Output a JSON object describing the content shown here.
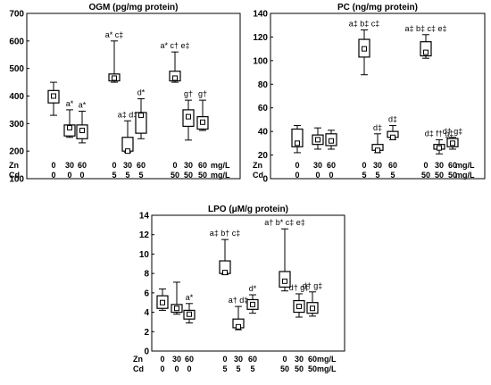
{
  "chart_data": [
    {
      "type": "box",
      "title": "OGM (pg/mg protein)",
      "ylim": [
        100,
        700
      ],
      "yticks": [
        100,
        200,
        300,
        400,
        500,
        600,
        700
      ],
      "conditions": {
        "rows": [
          {
            "name": "Zn",
            "unit": "mg/L",
            "values": [
              "0",
              "30",
              "60",
              "0",
              "30",
              "60",
              "0",
              "30",
              "60"
            ]
          },
          {
            "name": "Cd",
            "unit": "mg/L",
            "values": [
              "0",
              "0",
              "0",
              "5",
              "5",
              "5",
              "50",
              "50",
              "50"
            ]
          }
        ]
      },
      "boxes": [
        {
          "lo": 330,
          "q1": 375,
          "med": 400,
          "q3": 420,
          "hi": 450,
          "mean": 400,
          "note": ""
        },
        {
          "lo": 250,
          "q1": 255,
          "med": 290,
          "q3": 295,
          "hi": 350,
          "mean": 285,
          "note": "a*"
        },
        {
          "lo": 230,
          "q1": 245,
          "med": 275,
          "q3": 295,
          "hi": 345,
          "mean": 275,
          "note": "a*"
        },
        {
          "lo": 450,
          "q1": 455,
          "med": 460,
          "q3": 480,
          "hi": 600,
          "mean": 465,
          "note": "a* c‡"
        },
        {
          "lo": 195,
          "q1": 200,
          "med": 230,
          "q3": 250,
          "hi": 310,
          "mean": 200,
          "note": "a‡ d‡"
        },
        {
          "lo": 245,
          "q1": 265,
          "med": 300,
          "q3": 340,
          "hi": 390,
          "mean": 330,
          "note": "d*"
        },
        {
          "lo": 450,
          "q1": 455,
          "med": 460,
          "q3": 490,
          "hi": 560,
          "mean": 465,
          "note": "a* c† e‡"
        },
        {
          "lo": 240,
          "q1": 290,
          "med": 320,
          "q3": 350,
          "hi": 385,
          "mean": 325,
          "note": "g†"
        },
        {
          "lo": 275,
          "q1": 280,
          "med": 300,
          "q3": 325,
          "hi": 385,
          "mean": 305,
          "note": "g†"
        }
      ]
    },
    {
      "type": "box",
      "title": "PC (ng/mg protein)",
      "ylim": [
        0,
        140
      ],
      "yticks": [
        0,
        20,
        40,
        60,
        80,
        100,
        120,
        140
      ],
      "conditions": {
        "rows": [
          {
            "name": "Zn",
            "unit": "mg/L",
            "values": [
              "0",
              "30",
              "60",
              "0",
              "30",
              "60",
              "0",
              "30",
              "60"
            ]
          },
          {
            "name": "Cd",
            "unit": "mg/L",
            "values": [
              "0",
              "0",
              "0",
              "5",
              "5",
              "5",
              "50",
              "50",
              "50"
            ]
          }
        ]
      },
      "boxes": [
        {
          "lo": 22,
          "q1": 27,
          "med": 32,
          "q3": 42,
          "hi": 45,
          "mean": 30,
          "note": ""
        },
        {
          "lo": 25,
          "q1": 29,
          "med": 33,
          "q3": 37,
          "hi": 43,
          "mean": 33,
          "note": ""
        },
        {
          "lo": 25,
          "q1": 28,
          "med": 33,
          "q3": 38,
          "hi": 41,
          "mean": 32,
          "note": ""
        },
        {
          "lo": 88,
          "q1": 103,
          "med": 110,
          "q3": 118,
          "hi": 126,
          "mean": 110,
          "note": "a‡ b‡ c‡"
        },
        {
          "lo": 22,
          "q1": 24,
          "med": 25,
          "q3": 29,
          "hi": 38,
          "mean": 24,
          "note": "d‡"
        },
        {
          "lo": 33,
          "q1": 35,
          "med": 37,
          "q3": 40,
          "hi": 45,
          "mean": 35,
          "note": "d‡"
        },
        {
          "lo": 102,
          "q1": 104,
          "med": 108,
          "q3": 116,
          "hi": 122,
          "mean": 107,
          "note": "a‡ b‡ c‡ e‡"
        },
        {
          "lo": 21,
          "q1": 25,
          "med": 26,
          "q3": 29,
          "hi": 33,
          "mean": 26,
          "note": "d‡ f† g‡"
        },
        {
          "lo": 25,
          "q1": 27,
          "med": 30,
          "q3": 34,
          "hi": 35,
          "mean": 30,
          "note": "d† g‡"
        }
      ]
    },
    {
      "type": "box",
      "title": "LPO (μM/g protein)",
      "ylim": [
        0,
        14
      ],
      "yticks": [
        0,
        2,
        4,
        6,
        8,
        10,
        12,
        14
      ],
      "conditions": {
        "rows": [
          {
            "name": "Zn",
            "unit": "mg/L",
            "values": [
              "0",
              "30",
              "60",
              "0",
              "30",
              "60",
              "0",
              "30",
              "60"
            ]
          },
          {
            "name": "Cd",
            "unit": "mg/L",
            "values": [
              "0",
              "0",
              "0",
              "5",
              "5",
              "5",
              "50",
              "50",
              "50"
            ]
          }
        ]
      },
      "boxes": [
        {
          "lo": 4.2,
          "q1": 4.4,
          "med": 5.0,
          "q3": 5.7,
          "hi": 6.4,
          "mean": 5.0,
          "note": ""
        },
        {
          "lo": 3.8,
          "q1": 4.0,
          "med": 4.4,
          "q3": 4.8,
          "hi": 7.1,
          "mean": 4.4,
          "note": ""
        },
        {
          "lo": 2.9,
          "q1": 3.3,
          "med": 3.8,
          "q3": 4.2,
          "hi": 4.9,
          "mean": 3.8,
          "note": "a*"
        },
        {
          "lo": 7.9,
          "q1": 8.0,
          "med": 8.6,
          "q3": 9.3,
          "hi": 11.5,
          "mean": 8.1,
          "note": "a‡ b† c‡"
        },
        {
          "lo": 2.2,
          "q1": 2.4,
          "med": 2.6,
          "q3": 3.3,
          "hi": 4.6,
          "mean": 2.5,
          "note": "a† d‡"
        },
        {
          "lo": 3.9,
          "q1": 4.3,
          "med": 4.8,
          "q3": 5.3,
          "hi": 5.8,
          "mean": 4.8,
          "note": "d*"
        },
        {
          "lo": 6.2,
          "q1": 6.6,
          "med": 7.2,
          "q3": 8.2,
          "hi": 12.6,
          "mean": 7.2,
          "note": "a† b* c‡ e‡"
        },
        {
          "lo": 3.5,
          "q1": 4.0,
          "med": 4.5,
          "q3": 5.2,
          "hi": 5.9,
          "mean": 4.6,
          "note": "d† g‡"
        },
        {
          "lo": 3.6,
          "q1": 3.9,
          "med": 4.4,
          "q3": 5.0,
          "hi": 6.1,
          "mean": 4.4,
          "note": "d† g‡"
        }
      ]
    }
  ]
}
